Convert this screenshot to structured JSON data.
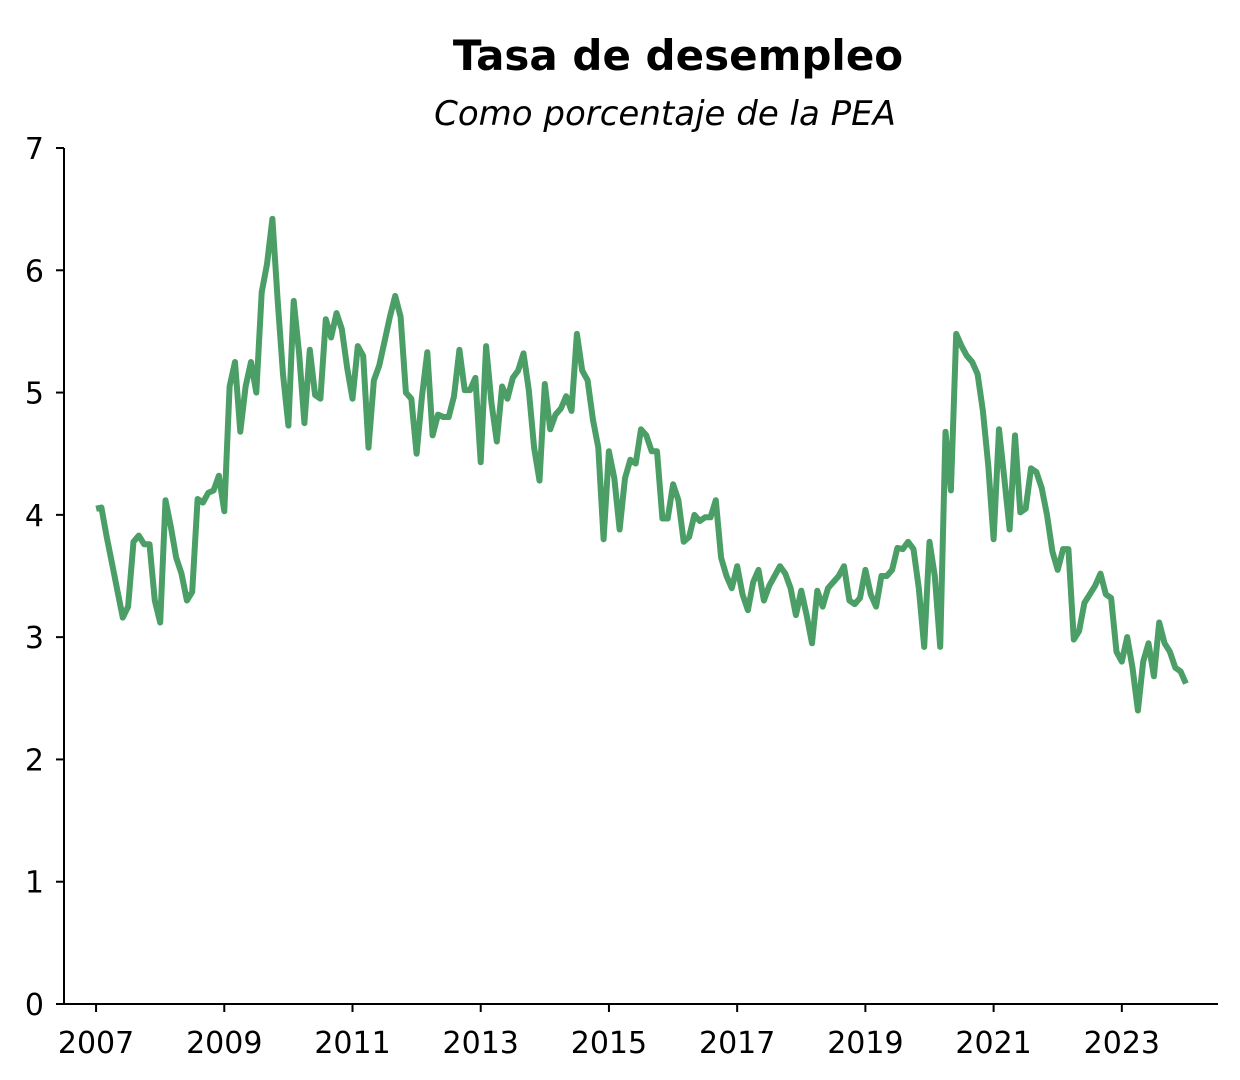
{
  "chart_data": {
    "type": "line",
    "title": "Tasa de desempleo",
    "subtitle": "Como porcentaje de la PEA",
    "xlabel": "",
    "ylabel": "",
    "ylim": [
      0,
      7
    ],
    "xlim": [
      "2006-07",
      "2024-07"
    ],
    "y_ticks": [
      0,
      1,
      2,
      3,
      4,
      5,
      6,
      7
    ],
    "x_ticks": [
      "2007",
      "2009",
      "2011",
      "2013",
      "2015",
      "2017",
      "2019",
      "2021",
      "2023"
    ],
    "grid": false,
    "legend": "none",
    "series": [
      {
        "color": "#4a9e66",
        "points": [
          [
            "2007-01",
            4.05
          ],
          [
            "2007-02",
            4.06
          ],
          [
            "2007-03",
            3.82
          ],
          [
            "2007-04",
            3.6
          ],
          [
            "2007-05",
            3.38
          ],
          [
            "2007-06",
            3.16
          ],
          [
            "2007-07",
            3.25
          ],
          [
            "2007-08",
            3.78
          ],
          [
            "2007-09",
            3.83
          ],
          [
            "2007-10",
            3.76
          ],
          [
            "2007-11",
            3.76
          ],
          [
            "2007-12",
            3.3
          ],
          [
            "2008-01",
            3.12
          ],
          [
            "2008-02",
            4.12
          ],
          [
            "2008-03",
            3.9
          ],
          [
            "2008-04",
            3.65
          ],
          [
            "2008-05",
            3.52
          ],
          [
            "2008-06",
            3.3
          ],
          [
            "2008-07",
            3.37
          ],
          [
            "2008-08",
            4.13
          ],
          [
            "2008-09",
            4.1
          ],
          [
            "2008-10",
            4.18
          ],
          [
            "2008-11",
            4.2
          ],
          [
            "2008-12",
            4.32
          ],
          [
            "2009-01",
            4.03
          ],
          [
            "2009-02",
            5.05
          ],
          [
            "2009-03",
            5.25
          ],
          [
            "2009-04",
            4.68
          ],
          [
            "2009-05",
            5.05
          ],
          [
            "2009-06",
            5.25
          ],
          [
            "2009-07",
            5.0
          ],
          [
            "2009-08",
            5.82
          ],
          [
            "2009-09",
            6.05
          ],
          [
            "2009-10",
            6.42
          ],
          [
            "2009-11",
            5.75
          ],
          [
            "2009-12",
            5.15
          ],
          [
            "2010-01",
            4.73
          ],
          [
            "2010-02",
            5.75
          ],
          [
            "2010-03",
            5.32
          ],
          [
            "2010-04",
            4.75
          ],
          [
            "2010-05",
            5.35
          ],
          [
            "2010-06",
            4.98
          ],
          [
            "2010-07",
            4.95
          ],
          [
            "2010-08",
            5.6
          ],
          [
            "2010-09",
            5.45
          ],
          [
            "2010-10",
            5.65
          ],
          [
            "2010-11",
            5.52
          ],
          [
            "2010-12",
            5.2
          ],
          [
            "2011-01",
            4.95
          ],
          [
            "2011-02",
            5.38
          ],
          [
            "2011-03",
            5.3
          ],
          [
            "2011-04",
            4.55
          ],
          [
            "2011-05",
            5.1
          ],
          [
            "2011-06",
            5.22
          ],
          [
            "2011-07",
            5.42
          ],
          [
            "2011-08",
            5.62
          ],
          [
            "2011-09",
            5.79
          ],
          [
            "2011-10",
            5.62
          ],
          [
            "2011-11",
            5.0
          ],
          [
            "2011-12",
            4.95
          ],
          [
            "2012-01",
            4.5
          ],
          [
            "2012-02",
            4.97
          ],
          [
            "2012-03",
            5.33
          ],
          [
            "2012-04",
            4.65
          ],
          [
            "2012-05",
            4.82
          ],
          [
            "2012-06",
            4.8
          ],
          [
            "2012-07",
            4.8
          ],
          [
            "2012-08",
            4.97
          ],
          [
            "2012-09",
            5.35
          ],
          [
            "2012-10",
            5.02
          ],
          [
            "2012-11",
            5.02
          ],
          [
            "2012-12",
            5.12
          ],
          [
            "2013-01",
            4.43
          ],
          [
            "2013-02",
            5.38
          ],
          [
            "2013-03",
            4.92
          ],
          [
            "2013-04",
            4.6
          ],
          [
            "2013-05",
            5.05
          ],
          [
            "2013-06",
            4.95
          ],
          [
            "2013-07",
            5.12
          ],
          [
            "2013-08",
            5.18
          ],
          [
            "2013-09",
            5.32
          ],
          [
            "2013-10",
            5.02
          ],
          [
            "2013-11",
            4.55
          ],
          [
            "2013-12",
            4.28
          ],
          [
            "2014-01",
            5.07
          ],
          [
            "2014-02",
            4.7
          ],
          [
            "2014-03",
            4.82
          ],
          [
            "2014-04",
            4.87
          ],
          [
            "2014-05",
            4.97
          ],
          [
            "2014-06",
            4.85
          ],
          [
            "2014-07",
            5.48
          ],
          [
            "2014-08",
            5.18
          ],
          [
            "2014-09",
            5.1
          ],
          [
            "2014-10",
            4.78
          ],
          [
            "2014-11",
            4.55
          ],
          [
            "2014-12",
            3.8
          ],
          [
            "2015-01",
            4.52
          ],
          [
            "2015-02",
            4.3
          ],
          [
            "2015-03",
            3.88
          ],
          [
            "2015-04",
            4.3
          ],
          [
            "2015-05",
            4.45
          ],
          [
            "2015-06",
            4.42
          ],
          [
            "2015-07",
            4.7
          ],
          [
            "2015-08",
            4.65
          ],
          [
            "2015-09",
            4.52
          ],
          [
            "2015-10",
            4.52
          ],
          [
            "2015-11",
            3.97
          ],
          [
            "2015-12",
            3.97
          ],
          [
            "2016-01",
            4.25
          ],
          [
            "2016-02",
            4.12
          ],
          [
            "2016-03",
            3.78
          ],
          [
            "2016-04",
            3.82
          ],
          [
            "2016-05",
            4.0
          ],
          [
            "2016-06",
            3.95
          ],
          [
            "2016-07",
            3.98
          ],
          [
            "2016-08",
            3.98
          ],
          [
            "2016-09",
            4.12
          ],
          [
            "2016-10",
            3.65
          ],
          [
            "2016-11",
            3.5
          ],
          [
            "2016-12",
            3.4
          ],
          [
            "2017-01",
            3.58
          ],
          [
            "2017-02",
            3.35
          ],
          [
            "2017-03",
            3.22
          ],
          [
            "2017-04",
            3.45
          ],
          [
            "2017-05",
            3.55
          ],
          [
            "2017-06",
            3.3
          ],
          [
            "2017-07",
            3.42
          ],
          [
            "2017-08",
            3.5
          ],
          [
            "2017-09",
            3.58
          ],
          [
            "2017-10",
            3.52
          ],
          [
            "2017-11",
            3.4
          ],
          [
            "2017-12",
            3.18
          ],
          [
            "2018-01",
            3.38
          ],
          [
            "2018-02",
            3.18
          ],
          [
            "2018-03",
            2.95
          ],
          [
            "2018-04",
            3.38
          ],
          [
            "2018-05",
            3.25
          ],
          [
            "2018-06",
            3.4
          ],
          [
            "2018-07",
            3.45
          ],
          [
            "2018-08",
            3.5
          ],
          [
            "2018-09",
            3.58
          ],
          [
            "2018-10",
            3.3
          ],
          [
            "2018-11",
            3.27
          ],
          [
            "2018-12",
            3.32
          ],
          [
            "2019-01",
            3.55
          ],
          [
            "2019-02",
            3.35
          ],
          [
            "2019-03",
            3.25
          ],
          [
            "2019-04",
            3.5
          ],
          [
            "2019-05",
            3.5
          ],
          [
            "2019-06",
            3.55
          ],
          [
            "2019-07",
            3.73
          ],
          [
            "2019-08",
            3.72
          ],
          [
            "2019-09",
            3.78
          ],
          [
            "2019-10",
            3.72
          ],
          [
            "2019-11",
            3.4
          ],
          [
            "2019-12",
            2.92
          ],
          [
            "2020-01",
            3.78
          ],
          [
            "2020-02",
            3.5
          ],
          [
            "2020-03",
            2.92
          ],
          [
            "2020-04",
            4.68
          ],
          [
            "2020-05",
            4.2
          ],
          [
            "2020-06",
            5.48
          ],
          [
            "2020-07",
            5.38
          ],
          [
            "2020-08",
            5.3
          ],
          [
            "2020-09",
            5.25
          ],
          [
            "2020-10",
            5.15
          ],
          [
            "2020-11",
            4.85
          ],
          [
            "2020-12",
            4.4
          ],
          [
            "2021-01",
            3.8
          ],
          [
            "2021-02",
            4.7
          ],
          [
            "2021-03",
            4.3
          ],
          [
            "2021-04",
            3.88
          ],
          [
            "2021-05",
            4.65
          ],
          [
            "2021-06",
            4.02
          ],
          [
            "2021-07",
            4.05
          ],
          [
            "2021-08",
            4.38
          ],
          [
            "2021-09",
            4.35
          ],
          [
            "2021-10",
            4.22
          ],
          [
            "2021-11",
            4.0
          ],
          [
            "2021-12",
            3.7
          ],
          [
            "2022-01",
            3.55
          ],
          [
            "2022-02",
            3.72
          ],
          [
            "2022-03",
            3.72
          ],
          [
            "2022-04",
            2.98
          ],
          [
            "2022-05",
            3.05
          ],
          [
            "2022-06",
            3.28
          ],
          [
            "2022-07",
            3.35
          ],
          [
            "2022-08",
            3.42
          ],
          [
            "2022-09",
            3.52
          ],
          [
            "2022-10",
            3.35
          ],
          [
            "2022-11",
            3.32
          ],
          [
            "2022-12",
            2.88
          ],
          [
            "2023-01",
            2.8
          ],
          [
            "2023-02",
            3.0
          ],
          [
            "2023-03",
            2.75
          ],
          [
            "2023-04",
            2.4
          ],
          [
            "2023-05",
            2.8
          ],
          [
            "2023-06",
            2.95
          ],
          [
            "2023-07",
            2.68
          ],
          [
            "2023-08",
            3.12
          ],
          [
            "2023-09",
            2.95
          ],
          [
            "2023-10",
            2.88
          ],
          [
            "2023-11",
            2.75
          ],
          [
            "2023-12",
            2.72
          ],
          [
            "2024-01",
            2.62
          ]
        ]
      }
    ]
  }
}
